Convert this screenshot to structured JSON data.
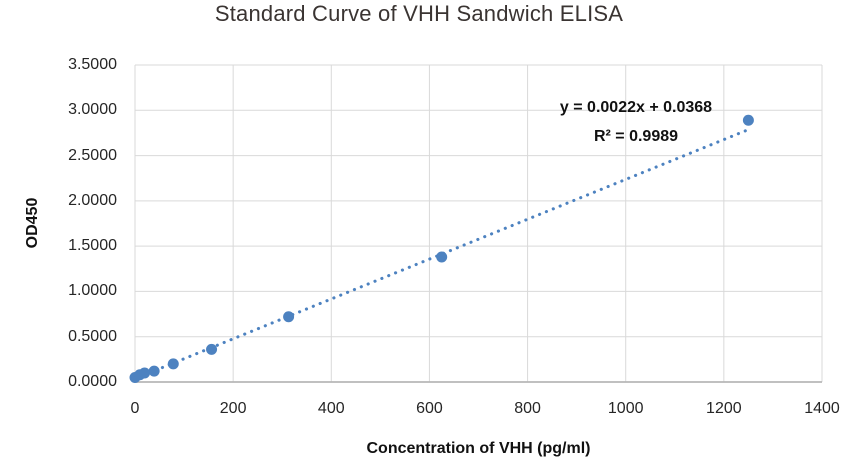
{
  "chart_data": {
    "type": "scatter",
    "title": "Standard Curve of VHH Sandwich ELISA",
    "xlabel": "Concentration of VHH (pg/ml)",
    "ylabel": "OD450",
    "xlim": [
      0,
      1400
    ],
    "ylim": [
      0,
      3.5
    ],
    "x_ticks": [
      0,
      200,
      400,
      600,
      800,
      1000,
      1200,
      1400
    ],
    "y_ticks": [
      0,
      0.5,
      1,
      1.5,
      2,
      2.5,
      3,
      3.5
    ],
    "y_tick_decimals": 4,
    "grid": true,
    "legend": "none",
    "points": [
      {
        "x": 0,
        "y": 0.05
      },
      {
        "x": 9.8,
        "y": 0.08
      },
      {
        "x": 19.5,
        "y": 0.1
      },
      {
        "x": 39,
        "y": 0.12
      },
      {
        "x": 78,
        "y": 0.2
      },
      {
        "x": 156,
        "y": 0.36
      },
      {
        "x": 313,
        "y": 0.72
      },
      {
        "x": 625,
        "y": 1.38
      },
      {
        "x": 1250,
        "y": 2.89
      }
    ],
    "trendline": {
      "slope": 0.0022,
      "intercept": 0.0368,
      "x_start": 0,
      "x_end": 1250,
      "style": "dotted"
    },
    "annotation": {
      "equation": "y = 0.0022x + 0.0368",
      "r_squared": "R² = 0.9989"
    },
    "colors": {
      "marker": "#4d82c0",
      "trendline": "#4d82c0",
      "gridline": "#d9d9d9",
      "axis_line": "#b7b7b7",
      "tick_text": "#262626",
      "title_text": "#3a3432"
    }
  }
}
